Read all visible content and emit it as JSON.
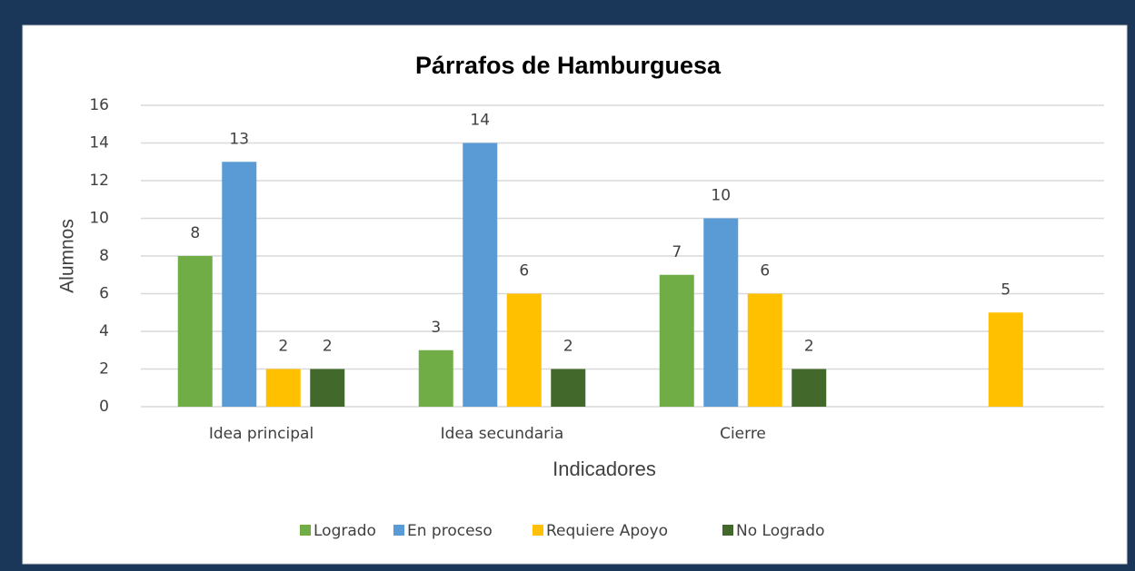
{
  "chart_data": {
    "type": "bar",
    "title": "Párrafos de Hamburguesa",
    "x_label": "Indicadores",
    "y_label": "Alumnos",
    "categories": [
      "Idea principal",
      "Idea secundaria",
      "Cierre",
      null
    ],
    "series": [
      {
        "name": "Logrado",
        "color": "#70ad47",
        "values": [
          8,
          3,
          7,
          null
        ]
      },
      {
        "name": "En proceso",
        "color": "#5b9bd5",
        "values": [
          13,
          14,
          10,
          null
        ]
      },
      {
        "name": "Requiere Apoyo",
        "color": "#ffc000",
        "values": [
          2,
          6,
          6,
          5
        ]
      },
      {
        "name": "No Logrado",
        "color": "#43682b",
        "values": [
          2,
          2,
          2,
          null
        ]
      }
    ],
    "ylim": [
      0,
      16
    ],
    "yticks": [
      0,
      2,
      4,
      6,
      8,
      10,
      12,
      14,
      16
    ],
    "grid": true,
    "legend": "bottom"
  }
}
